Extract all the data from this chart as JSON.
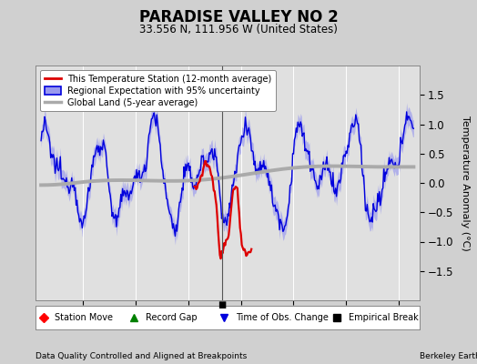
{
  "title": "PARADISE VALLEY NO 2",
  "subtitle": "33.556 N, 111.956 W (United States)",
  "ylabel": "Temperature Anomaly (°C)",
  "xlabel_left": "Data Quality Controlled and Aligned at Breakpoints",
  "xlabel_right": "Berkeley Earth",
  "ylim": [
    -2,
    2
  ],
  "xlim": [
    1955.5,
    1992
  ],
  "xticks": [
    1960,
    1965,
    1970,
    1975,
    1980,
    1985,
    1990
  ],
  "yticks_right": [
    -1.5,
    -1,
    -0.5,
    0,
    0.5,
    1,
    1.5
  ],
  "bg_color": "#d0d0d0",
  "plot_bg_color": "#e0e0e0",
  "grid_color": "#ffffff",
  "regional_color": "#0000dd",
  "regional_fill_color": "#9999ee",
  "station_color": "#dd0000",
  "global_color": "#aaaaaa",
  "empirical_break_x": 1973.2,
  "obs_change_x": 1973.2,
  "legend_labels": [
    "This Temperature Station (12-month average)",
    "Regional Expectation with 95% uncertainty",
    "Global Land (5-year average)"
  ],
  "bottom_labels": [
    "Station Move",
    "Record Gap",
    "Time of Obs. Change",
    "Empirical Break"
  ]
}
